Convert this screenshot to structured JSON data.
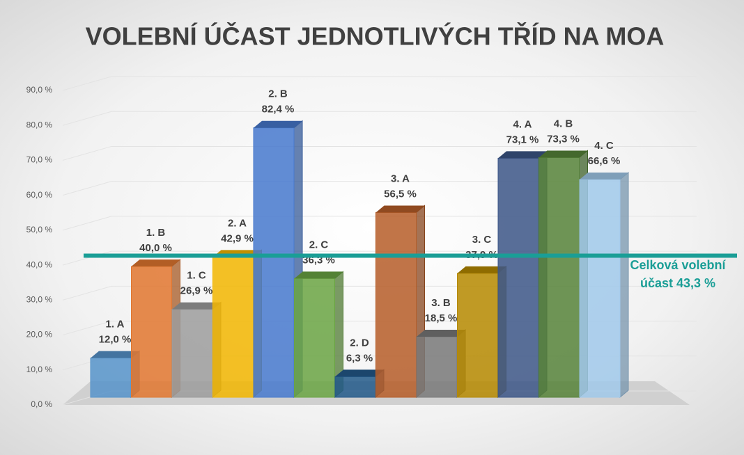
{
  "chart_data": {
    "type": "bar3d",
    "title": "VOLEBNÍ ÚČAST JEDNOTLIVÝCH TŘÍD NA MOA",
    "categories": [
      "1. A",
      "1. B",
      "1. C",
      "2. A",
      "2. B",
      "2. C",
      "2. D",
      "3. A",
      "3. B",
      "3. C",
      "4. A",
      "4. B",
      "4. C"
    ],
    "values": [
      12.0,
      40.0,
      26.9,
      42.9,
      82.4,
      36.3,
      6.3,
      56.5,
      18.5,
      37.9,
      73.1,
      73.3,
      66.6
    ],
    "value_labels": [
      "12,0 %",
      "40,0 %",
      "26,9 %",
      "42,9 %",
      "82,4 %",
      "36,3 %",
      "6,3 %",
      "56,5 %",
      "18,5 %",
      "37,9 %",
      "73,1 %",
      "73,3 %",
      "66,6 %"
    ],
    "colors": [
      "#5b9bd5",
      "#ed7d31",
      "#a5a5a5",
      "#ffc000",
      "#4a7fd8",
      "#70ad47",
      "#255e91",
      "#c0622a",
      "#7f7f7f",
      "#bf9000",
      "#3f5a8e",
      "#5a8a3c",
      "#a9d4f7"
    ],
    "ylim": [
      0,
      90
    ],
    "yticks": [
      {
        "value": 0,
        "label": "0,0 %"
      },
      {
        "value": 10,
        "label": "10,0 %"
      },
      {
        "value": 20,
        "label": "20,0 %"
      },
      {
        "value": 30,
        "label": "30,0 %"
      },
      {
        "value": 40,
        "label": "40,0 %"
      },
      {
        "value": 50,
        "label": "50,0 %"
      },
      {
        "value": 60,
        "label": "60,0 %"
      },
      {
        "value": 70,
        "label": "70,0 %"
      },
      {
        "value": 80,
        "label": "80,0 %"
      },
      {
        "value": 90,
        "label": "90,0 %"
      }
    ],
    "grid": true,
    "reference_line": {
      "value": 43.3,
      "label": "Celková volební účast 43,3 %",
      "color": "#1a9e96"
    }
  }
}
